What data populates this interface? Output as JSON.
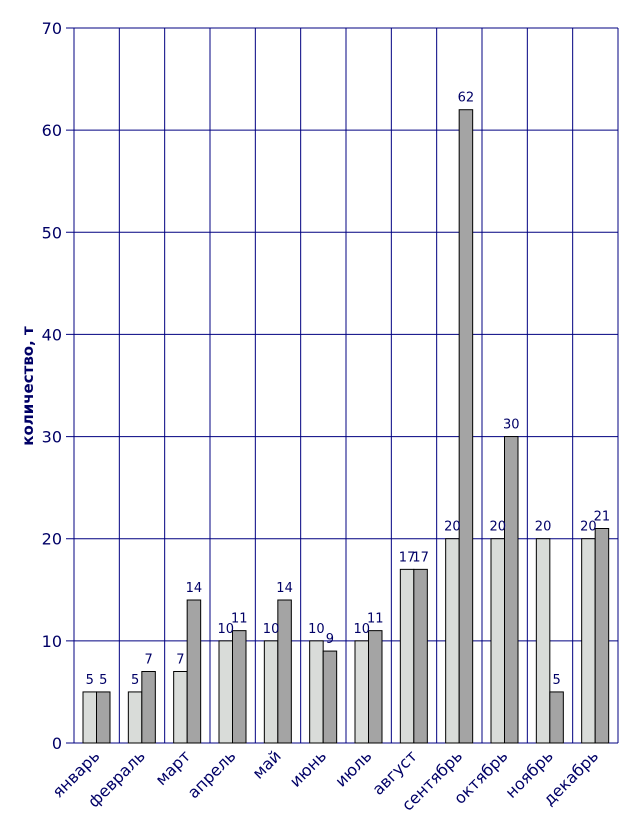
{
  "chart_data": {
    "type": "bar",
    "title": "",
    "xlabel": "",
    "ylabel": "количество, т",
    "ylim": [
      0,
      70
    ],
    "yticks": [
      0,
      10,
      20,
      30,
      40,
      50,
      60,
      70
    ],
    "grid": true,
    "legend": "none",
    "categories": [
      "январь",
      "февраль",
      "март",
      "апрель",
      "май",
      "июнь",
      "июль",
      "август",
      "сентябрь",
      "октябрь",
      "ноябрь",
      "декабрь"
    ],
    "series": [
      {
        "values": [
          5,
          5,
          7,
          10,
          10,
          10,
          10,
          17,
          20,
          20,
          20,
          20
        ],
        "color": "#d9dcd9"
      },
      {
        "values": [
          5,
          7,
          14,
          11,
          14,
          9,
          11,
          17,
          62,
          30,
          5,
          21
        ],
        "color": "#a4a4a4"
      }
    ],
    "colors": {
      "grid": "#000080",
      "text": "#000066",
      "bar_outline": "#000000"
    }
  }
}
